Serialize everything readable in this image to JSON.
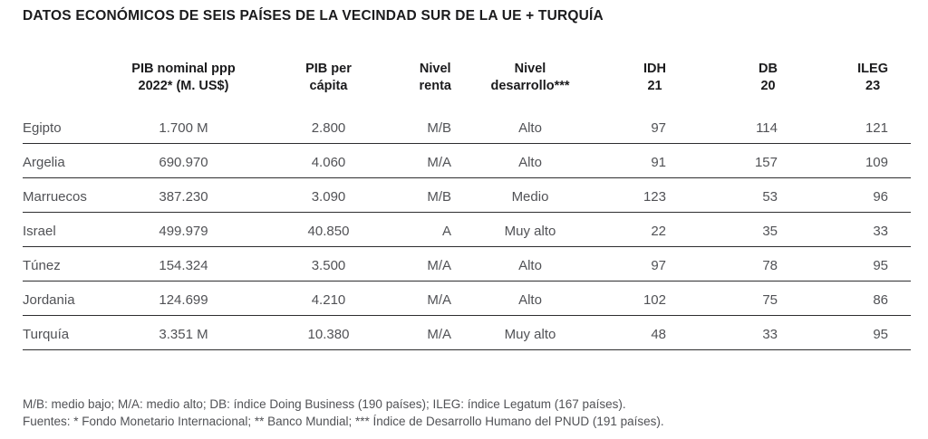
{
  "title": "DATOS ECONÓMICOS DE SEIS PAÍSES DE LA VECINDAD SUR DE LA UE + TURQUÍA",
  "table": {
    "columns": [
      {
        "key": "pais",
        "label": ""
      },
      {
        "key": "pib_nominal",
        "label": "PIB nominal ppp\n2022* (M. US$)"
      },
      {
        "key": "pib_per_capita",
        "label": "PIB per\ncápita"
      },
      {
        "key": "nivel_renta",
        "label": "Nivel\nrenta"
      },
      {
        "key": "nivel_desarrollo",
        "label": "Nivel\ndesarrollo***"
      },
      {
        "key": "idh",
        "label": "IDH\n21"
      },
      {
        "key": "db",
        "label": "DB\n20"
      },
      {
        "key": "ileg",
        "label": "ILEG\n23"
      }
    ],
    "rows": [
      [
        "Egipto",
        "1.700 M",
        "2.800",
        "M/B",
        "Alto",
        "97",
        "114",
        "121"
      ],
      [
        "Argelia",
        "690.970",
        "4.060",
        "M/A",
        "Alto",
        "91",
        "157",
        "109"
      ],
      [
        "Marruecos",
        "387.230",
        "3.090",
        "M/B",
        "Medio",
        "123",
        "53",
        "96"
      ],
      [
        "Israel",
        "499.979",
        "40.850",
        "A",
        "Muy alto",
        "22",
        "35",
        "33"
      ],
      [
        "Túnez",
        "154.324",
        "3.500",
        "M/A",
        "Alto",
        "97",
        "78",
        "95"
      ],
      [
        "Jordania",
        "124.699",
        "4.210",
        "M/A",
        "Alto",
        "102",
        "75",
        "86"
      ],
      [
        "Turquía",
        "3.351 M",
        "10.380",
        "M/A",
        "Muy alto",
        "48",
        "33",
        "95"
      ]
    ]
  },
  "footnotes": [
    "M/B: medio bajo; M/A: medio alto; DB: índice Doing Business (190 países); ILEG: índice Legatum (167 países).",
    "Fuentes: * Fondo Monetario Internacional; ** Banco Mundial; *** Índice de Desarrollo Humano del PNUD (191 países)."
  ]
}
